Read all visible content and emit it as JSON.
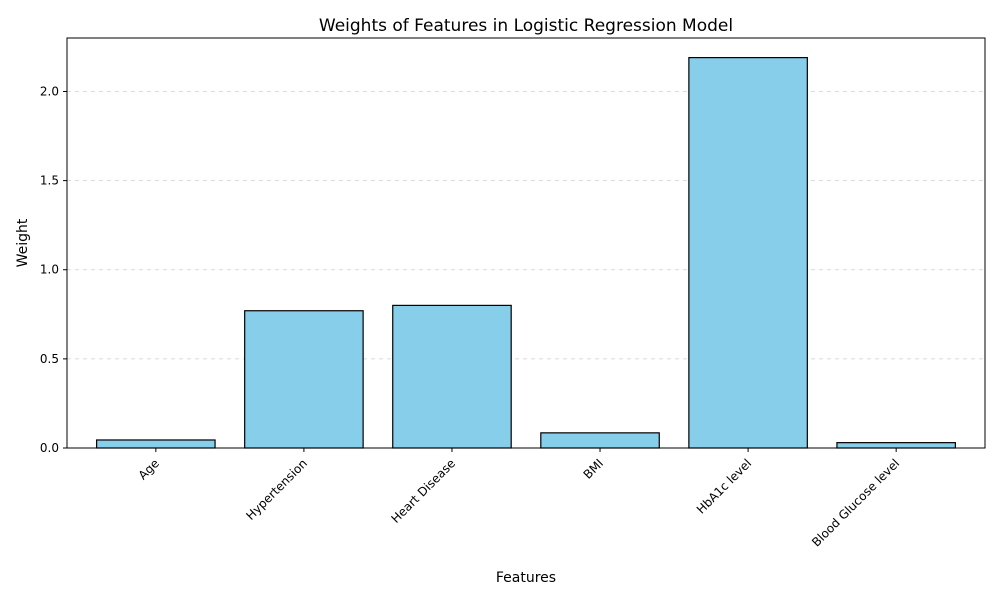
{
  "chart_data": {
    "type": "bar",
    "title": "Weights of Features in Logistic Regression Model",
    "xlabel": "Features",
    "ylabel": "Weight",
    "categories": [
      "Age",
      "Hypertension",
      "Heart Disease",
      "BMI",
      "HbA1c level",
      "Blood Glucose level"
    ],
    "values": [
      0.045,
      0.77,
      0.8,
      0.085,
      2.19,
      0.03
    ],
    "ylim": [
      0,
      2.3
    ],
    "yticks": [
      0.0,
      0.5,
      1.0,
      1.5,
      2.0
    ],
    "ytick_labels": [
      "0.0",
      "0.5",
      "1.0",
      "1.5",
      "2.0"
    ],
    "grid": "y-dashed",
    "bar_color": "#87CEEB",
    "edge_color": "#000000",
    "xtick_rotation": 45
  }
}
